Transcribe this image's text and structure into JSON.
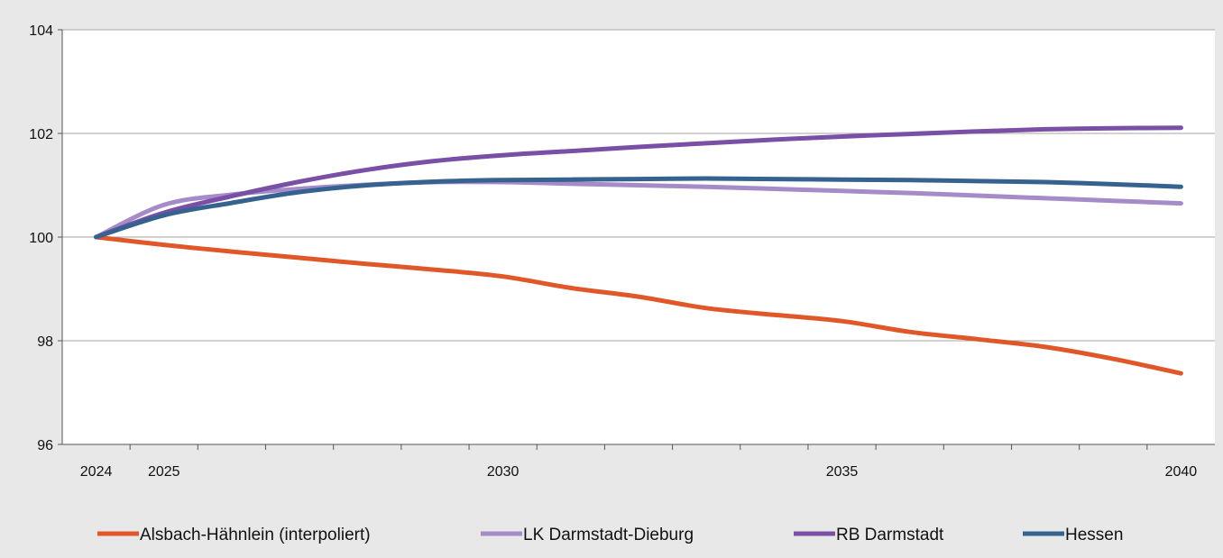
{
  "chart_data": {
    "type": "line",
    "title": "",
    "xlabel": "",
    "ylabel": "",
    "ylim": [
      96,
      104
    ],
    "yticks": [
      "96",
      "98",
      "100",
      "102",
      "104"
    ],
    "xticks": [
      "2024",
      "2025",
      "2030",
      "2035",
      "2040"
    ],
    "x": [
      2024,
      2025,
      2026,
      2027,
      2028,
      2029,
      2030,
      2031,
      2032,
      2033,
      2034,
      2035,
      2036,
      2037,
      2038,
      2039,
      2040
    ],
    "grid": "horizontal",
    "legend_position": "bottom",
    "series": [
      {
        "name": "Alsbach-Hähnlein (interpoliert)",
        "color": "#e0582a",
        "values": [
          100,
          99.85,
          99.72,
          99.6,
          99.48,
          99.37,
          99.24,
          99.02,
          98.85,
          98.63,
          98.5,
          98.38,
          98.17,
          98.03,
          97.88,
          97.65,
          97.37
        ]
      },
      {
        "name": "LK Darmstadt-Dieburg",
        "color": "#a58cc8",
        "values": [
          100,
          100.62,
          100.82,
          100.93,
          101.01,
          101.06,
          101.06,
          101.03,
          101.0,
          100.97,
          100.93,
          100.89,
          100.85,
          100.8,
          100.75,
          100.7,
          100.65
        ]
      },
      {
        "name": "RB Darmstadt",
        "color": "#7a4fa6",
        "values": [
          100,
          100.47,
          100.79,
          101.07,
          101.3,
          101.47,
          101.58,
          101.66,
          101.74,
          101.81,
          101.88,
          101.94,
          101.99,
          102.04,
          102.08,
          102.1,
          102.11
        ]
      },
      {
        "name": "Hessen",
        "color": "#35628f",
        "values": [
          100,
          100.42,
          100.66,
          100.87,
          101.0,
          101.07,
          101.1,
          101.11,
          101.12,
          101.13,
          101.12,
          101.11,
          101.1,
          101.08,
          101.06,
          101.02,
          100.97
        ]
      }
    ]
  }
}
